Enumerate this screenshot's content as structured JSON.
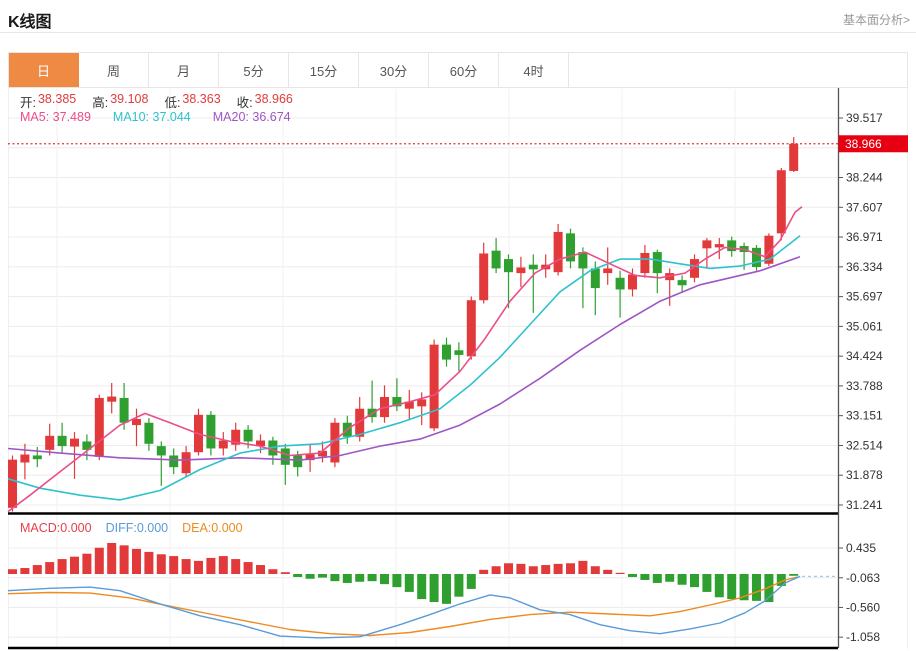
{
  "header": {
    "title": "K线图",
    "link": "基本面分析>"
  },
  "tabs": {
    "items": [
      "日",
      "周",
      "月",
      "5分",
      "15分",
      "30分",
      "60分",
      "4时"
    ],
    "active_index": 0
  },
  "ohlc": {
    "open_label": "开:",
    "open": "38.385",
    "high_label": "高:",
    "high": "39.108",
    "low_label": "低:",
    "low": "38.363",
    "close_label": "收:",
    "close": "38.966"
  },
  "ma": {
    "ma5_label": "MA5:",
    "ma5": "37.489",
    "ma10_label": "MA10:",
    "ma10": "37.044",
    "ma20_label": "MA20:",
    "ma20": "36.674"
  },
  "macd_info": {
    "macd_label": "MACD:",
    "macd": "0.000",
    "diff_label": "DIFF:",
    "diff": "0.000",
    "dea_label": "DEA:",
    "dea": "0.000"
  },
  "colors": {
    "up": "#e23a3a",
    "down": "#2fa02f",
    "ma5": "#ec4d8b",
    "ma10": "#30c2cc",
    "ma20": "#9f56c4",
    "diff": "#5a9bd8",
    "dea": "#ef8a1f",
    "badge": "#e60012",
    "price_line": "#e8312f",
    "active_tab": "#ef8a44",
    "grid": "#ececec",
    "axis": "#555555",
    "tick_text": "#333333",
    "macd_label_red": "#e5404a",
    "dashed_zero": "#9fcbe8"
  },
  "chart_data": {
    "type": "candlestick",
    "panels": [
      "price",
      "macd"
    ],
    "title": "K线图 日K (daily candlestick with MA5/MA10/MA20 and MACD)",
    "price_axis": {
      "ticks": [
        "39.517",
        "38.244",
        "37.607",
        "36.971",
        "36.334",
        "35.697",
        "35.061",
        "34.424",
        "33.788",
        "33.151",
        "32.514",
        "31.878",
        "31.241"
      ],
      "hidden_tick": "38.881",
      "current_price": "38.966"
    },
    "macd_axis": {
      "ticks": [
        "0.435",
        "-0.063",
        "-0.560",
        "-1.058"
      ]
    },
    "candles_ohlc": [
      [
        31.18,
        32.3,
        31.1,
        32.21
      ],
      [
        32.15,
        32.55,
        31.79,
        32.32
      ],
      [
        32.3,
        32.48,
        32.05,
        32.22
      ],
      [
        32.42,
        32.98,
        32.3,
        32.72
      ],
      [
        32.72,
        33.0,
        32.35,
        32.5
      ],
      [
        32.49,
        32.8,
        31.8,
        32.66
      ],
      [
        32.6,
        32.75,
        32.2,
        32.42
      ],
      [
        32.27,
        33.6,
        32.2,
        33.53
      ],
      [
        33.45,
        33.85,
        33.2,
        33.56
      ],
      [
        33.53,
        33.85,
        32.85,
        33.0
      ],
      [
        32.95,
        33.3,
        32.5,
        33.08
      ],
      [
        33.0,
        33.1,
        32.4,
        32.55
      ],
      [
        32.5,
        32.6,
        31.65,
        32.3
      ],
      [
        32.3,
        32.45,
        31.9,
        32.05
      ],
      [
        31.92,
        32.5,
        31.85,
        32.37
      ],
      [
        32.37,
        33.3,
        32.3,
        33.17
      ],
      [
        33.17,
        33.25,
        32.3,
        32.45
      ],
      [
        32.45,
        32.8,
        32.3,
        32.62
      ],
      [
        32.53,
        33.0,
        32.4,
        32.85
      ],
      [
        32.85,
        32.95,
        32.45,
        32.6
      ],
      [
        32.5,
        32.75,
        32.35,
        32.62
      ],
      [
        32.62,
        32.7,
        32.1,
        32.3
      ],
      [
        32.45,
        32.55,
        31.67,
        32.1
      ],
      [
        32.3,
        32.4,
        31.85,
        32.05
      ],
      [
        32.2,
        32.55,
        31.95,
        32.32
      ],
      [
        32.28,
        32.6,
        32.15,
        32.4
      ],
      [
        32.15,
        33.1,
        32.05,
        33.0
      ],
      [
        33.0,
        33.15,
        32.55,
        32.7
      ],
      [
        32.7,
        33.55,
        32.6,
        33.3
      ],
      [
        33.3,
        33.9,
        33.0,
        33.12
      ],
      [
        33.12,
        33.8,
        33.0,
        33.55
      ],
      [
        33.55,
        33.95,
        33.25,
        33.35
      ],
      [
        33.3,
        33.7,
        33.05,
        33.45
      ],
      [
        33.35,
        33.65,
        32.95,
        33.5
      ],
      [
        32.88,
        34.78,
        32.82,
        34.67
      ],
      [
        34.67,
        34.82,
        34.2,
        34.35
      ],
      [
        34.55,
        34.72,
        34.1,
        34.45
      ],
      [
        34.42,
        35.7,
        34.35,
        35.62
      ],
      [
        35.62,
        36.85,
        35.55,
        36.62
      ],
      [
        36.68,
        36.95,
        36.2,
        36.3
      ],
      [
        36.5,
        36.6,
        35.45,
        36.22
      ],
      [
        36.2,
        36.55,
        35.9,
        36.32
      ],
      [
        36.38,
        36.6,
        35.35,
        36.28
      ],
      [
        36.28,
        36.6,
        36.1,
        36.38
      ],
      [
        36.22,
        37.25,
        36.15,
        37.08
      ],
      [
        37.05,
        37.15,
        36.3,
        36.45
      ],
      [
        36.65,
        36.75,
        35.45,
        36.3
      ],
      [
        36.3,
        36.45,
        35.3,
        35.88
      ],
      [
        36.2,
        36.75,
        35.95,
        36.3
      ],
      [
        36.1,
        36.25,
        35.25,
        35.85
      ],
      [
        35.85,
        36.3,
        35.7,
        36.17
      ],
      [
        36.2,
        36.8,
        36.1,
        36.63
      ],
      [
        36.65,
        36.7,
        35.77,
        36.2
      ],
      [
        36.05,
        36.3,
        35.5,
        36.2
      ],
      [
        36.05,
        36.15,
        35.8,
        35.94
      ],
      [
        36.1,
        36.6,
        36.0,
        36.5
      ],
      [
        36.73,
        36.95,
        36.3,
        36.9
      ],
      [
        36.75,
        36.95,
        36.5,
        36.82
      ],
      [
        36.9,
        36.98,
        36.55,
        36.67
      ],
      [
        36.78,
        36.85,
        36.27,
        36.65
      ],
      [
        36.74,
        36.8,
        36.25,
        36.33
      ],
      [
        36.4,
        37.05,
        36.35,
        37.0
      ],
      [
        37.05,
        38.45,
        36.9,
        38.4
      ],
      [
        38.385,
        39.108,
        38.363,
        38.966
      ]
    ],
    "macd_hist": [
      0.08,
      0.1,
      0.15,
      0.2,
      0.25,
      0.29,
      0.34,
      0.44,
      0.52,
      0.48,
      0.42,
      0.37,
      0.33,
      0.3,
      0.25,
      0.22,
      0.27,
      0.3,
      0.25,
      0.2,
      0.15,
      0.08,
      0.03,
      -0.05,
      -0.08,
      -0.06,
      -0.12,
      -0.15,
      -0.13,
      -0.12,
      -0.17,
      -0.22,
      -0.3,
      -0.42,
      -0.47,
      -0.5,
      -0.38,
      -0.25,
      0.07,
      0.13,
      0.18,
      0.17,
      0.13,
      0.15,
      0.17,
      0.18,
      0.22,
      0.13,
      0.07,
      0.02,
      -0.05,
      -0.1,
      -0.15,
      -0.13,
      -0.18,
      -0.22,
      -0.3,
      -0.39,
      -0.42,
      -0.44,
      -0.45,
      -0.47,
      -0.2,
      -0.03
    ],
    "ma5_points": [
      [
        8,
        31.1
      ],
      [
        30,
        31.45
      ],
      [
        60,
        31.95
      ],
      [
        90,
        32.45
      ],
      [
        120,
        32.95
      ],
      [
        145,
        33.2
      ],
      [
        170,
        33.0
      ],
      [
        200,
        32.75
      ],
      [
        230,
        32.6
      ],
      [
        260,
        32.5
      ],
      [
        290,
        32.3
      ],
      [
        320,
        32.35
      ],
      [
        350,
        32.9
      ],
      [
        380,
        33.3
      ],
      [
        410,
        33.45
      ],
      [
        435,
        33.6
      ],
      [
        460,
        34.1
      ],
      [
        485,
        34.8
      ],
      [
        510,
        35.6
      ],
      [
        535,
        36.2
      ],
      [
        560,
        36.5
      ],
      [
        585,
        36.65
      ],
      [
        610,
        36.4
      ],
      [
        635,
        36.15
      ],
      [
        660,
        36.1
      ],
      [
        685,
        36.2
      ],
      [
        705,
        36.5
      ],
      [
        725,
        36.75
      ],
      [
        745,
        36.7
      ],
      [
        765,
        36.55
      ],
      [
        780,
        36.9
      ],
      [
        795,
        37.5
      ],
      [
        802,
        37.62
      ]
    ],
    "ma10_points": [
      [
        8,
        31.8
      ],
      [
        40,
        31.6
      ],
      [
        80,
        31.45
      ],
      [
        120,
        31.35
      ],
      [
        160,
        31.55
      ],
      [
        200,
        32.0
      ],
      [
        240,
        32.35
      ],
      [
        280,
        32.5
      ],
      [
        320,
        32.55
      ],
      [
        360,
        32.75
      ],
      [
        400,
        33.0
      ],
      [
        440,
        33.3
      ],
      [
        470,
        33.8
      ],
      [
        500,
        34.4
      ],
      [
        530,
        35.1
      ],
      [
        560,
        35.8
      ],
      [
        590,
        36.25
      ],
      [
        620,
        36.5
      ],
      [
        650,
        36.5
      ],
      [
        680,
        36.4
      ],
      [
        710,
        36.3
      ],
      [
        740,
        36.35
      ],
      [
        770,
        36.5
      ],
      [
        800,
        37.0
      ]
    ],
    "ma20_points": [
      [
        8,
        32.45
      ],
      [
        60,
        32.35
      ],
      [
        120,
        32.25
      ],
      [
        180,
        32.2
      ],
      [
        240,
        32.25
      ],
      [
        300,
        32.2
      ],
      [
        340,
        32.3
      ],
      [
        380,
        32.5
      ],
      [
        420,
        32.65
      ],
      [
        460,
        32.95
      ],
      [
        500,
        33.4
      ],
      [
        540,
        33.95
      ],
      [
        580,
        34.55
      ],
      [
        620,
        35.1
      ],
      [
        660,
        35.6
      ],
      [
        700,
        35.95
      ],
      [
        730,
        36.1
      ],
      [
        760,
        36.25
      ],
      [
        800,
        36.55
      ]
    ],
    "diff_points": [
      [
        8,
        -0.28
      ],
      [
        50,
        -0.24
      ],
      [
        90,
        -0.22
      ],
      [
        120,
        -0.28
      ],
      [
        160,
        -0.5
      ],
      [
        200,
        -0.7
      ],
      [
        240,
        -0.85
      ],
      [
        280,
        -1.04
      ],
      [
        320,
        -1.07
      ],
      [
        360,
        -1.05
      ],
      [
        400,
        -0.85
      ],
      [
        430,
        -0.68
      ],
      [
        460,
        -0.5
      ],
      [
        490,
        -0.35
      ],
      [
        510,
        -0.4
      ],
      [
        540,
        -0.6
      ],
      [
        570,
        -0.68
      ],
      [
        600,
        -0.85
      ],
      [
        630,
        -0.95
      ],
      [
        660,
        -1.0
      ],
      [
        690,
        -0.92
      ],
      [
        720,
        -0.82
      ],
      [
        745,
        -0.65
      ],
      [
        765,
        -0.45
      ],
      [
        785,
        -0.15
      ],
      [
        800,
        -0.04
      ]
    ],
    "dea_points": [
      [
        8,
        -0.33
      ],
      [
        50,
        -0.31
      ],
      [
        90,
        -0.32
      ],
      [
        130,
        -0.4
      ],
      [
        170,
        -0.54
      ],
      [
        210,
        -0.67
      ],
      [
        250,
        -0.8
      ],
      [
        290,
        -0.93
      ],
      [
        330,
        -1.0
      ],
      [
        370,
        -1.03
      ],
      [
        410,
        -0.98
      ],
      [
        450,
        -0.88
      ],
      [
        490,
        -0.76
      ],
      [
        530,
        -0.68
      ],
      [
        570,
        -0.64
      ],
      [
        610,
        -0.67
      ],
      [
        650,
        -0.7
      ],
      [
        680,
        -0.63
      ],
      [
        710,
        -0.52
      ],
      [
        740,
        -0.4
      ],
      [
        765,
        -0.25
      ],
      [
        785,
        -0.1
      ],
      [
        800,
        -0.04
      ]
    ]
  }
}
